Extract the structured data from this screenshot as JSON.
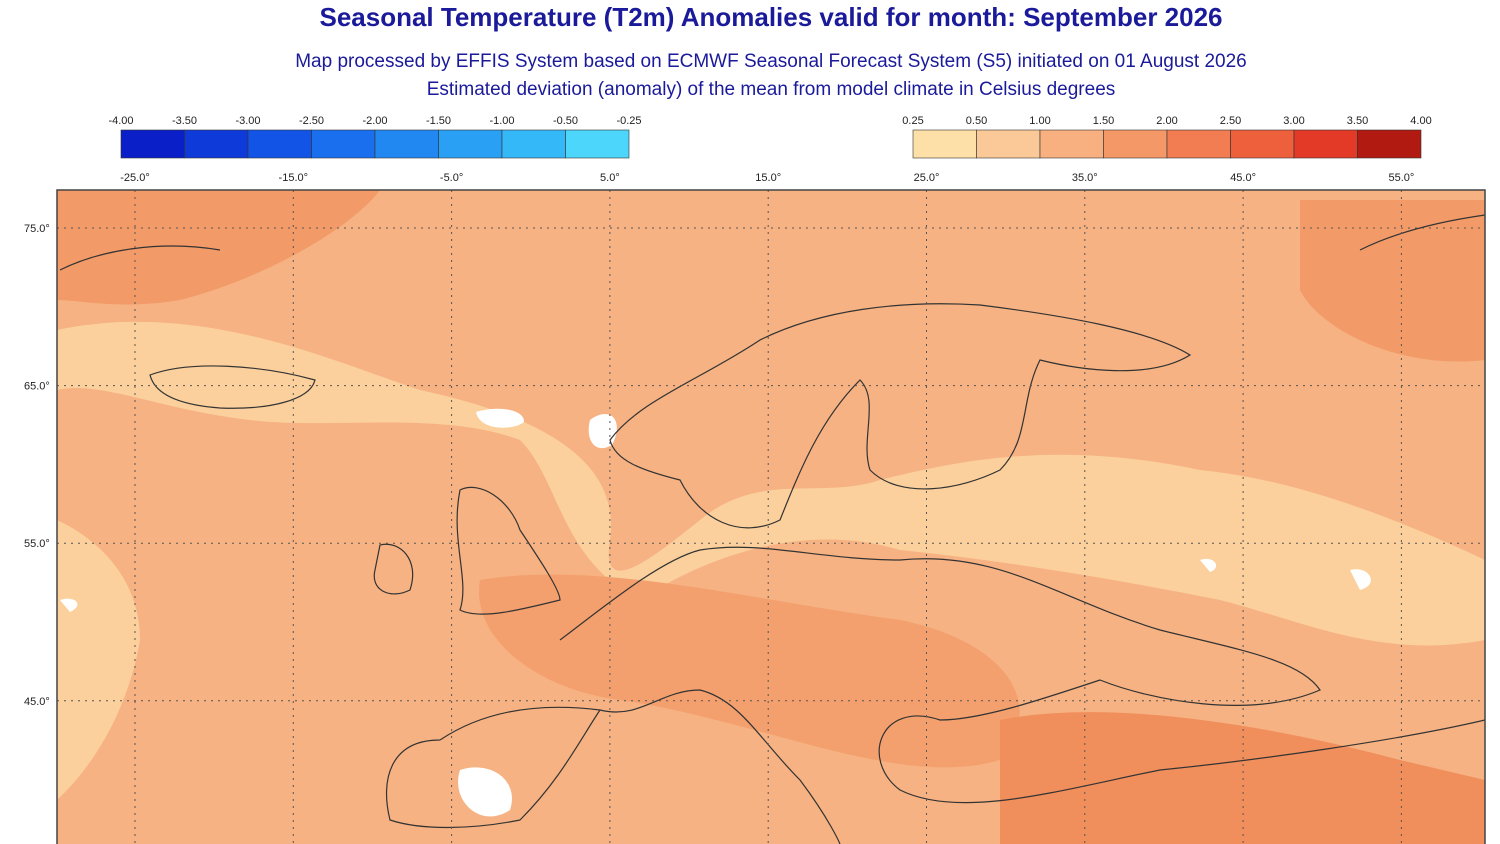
{
  "header": {
    "title": "Seasonal Temperature (T2m) Anomalies valid for month: September 2026",
    "subtitle_1": "Map processed by EFFIS System based on ECMWF Seasonal Forecast System (S5) initiated on 01 August 2026",
    "subtitle_2": "Estimated deviation (anomaly) of the mean from model climate in Celsius degrees"
  },
  "legend_cold": {
    "labels": [
      "-4.00",
      "-3.50",
      "-3.00",
      "-2.50",
      "-2.00",
      "-1.50",
      "-1.00",
      "-0.50",
      "-0.25"
    ],
    "colors": [
      "#0a1fc8",
      "#0d3ad8",
      "#1255e6",
      "#1a6fee",
      "#2188f2",
      "#2aa0f5",
      "#35b8f7",
      "#4dd6fb"
    ]
  },
  "legend_warm": {
    "labels": [
      "0.25",
      "0.50",
      "1.00",
      "1.50",
      "2.00",
      "2.50",
      "3.00",
      "3.50",
      "4.00"
    ],
    "colors": [
      "#fde0a8",
      "#fbc998",
      "#f8b080",
      "#f59868",
      "#f27d52",
      "#ee5f3c",
      "#e23a26",
      "#b01a10"
    ]
  },
  "longitude_labels": [
    "-25.0°",
    "-15.0°",
    "-5.0°",
    "5.0°",
    "15.0°",
    "25.0°",
    "35.0°",
    "45.0°",
    "55.0°"
  ],
  "latitude_labels": [
    "75.0°",
    "65.0°",
    "55.0°",
    "45.0°"
  ]
}
